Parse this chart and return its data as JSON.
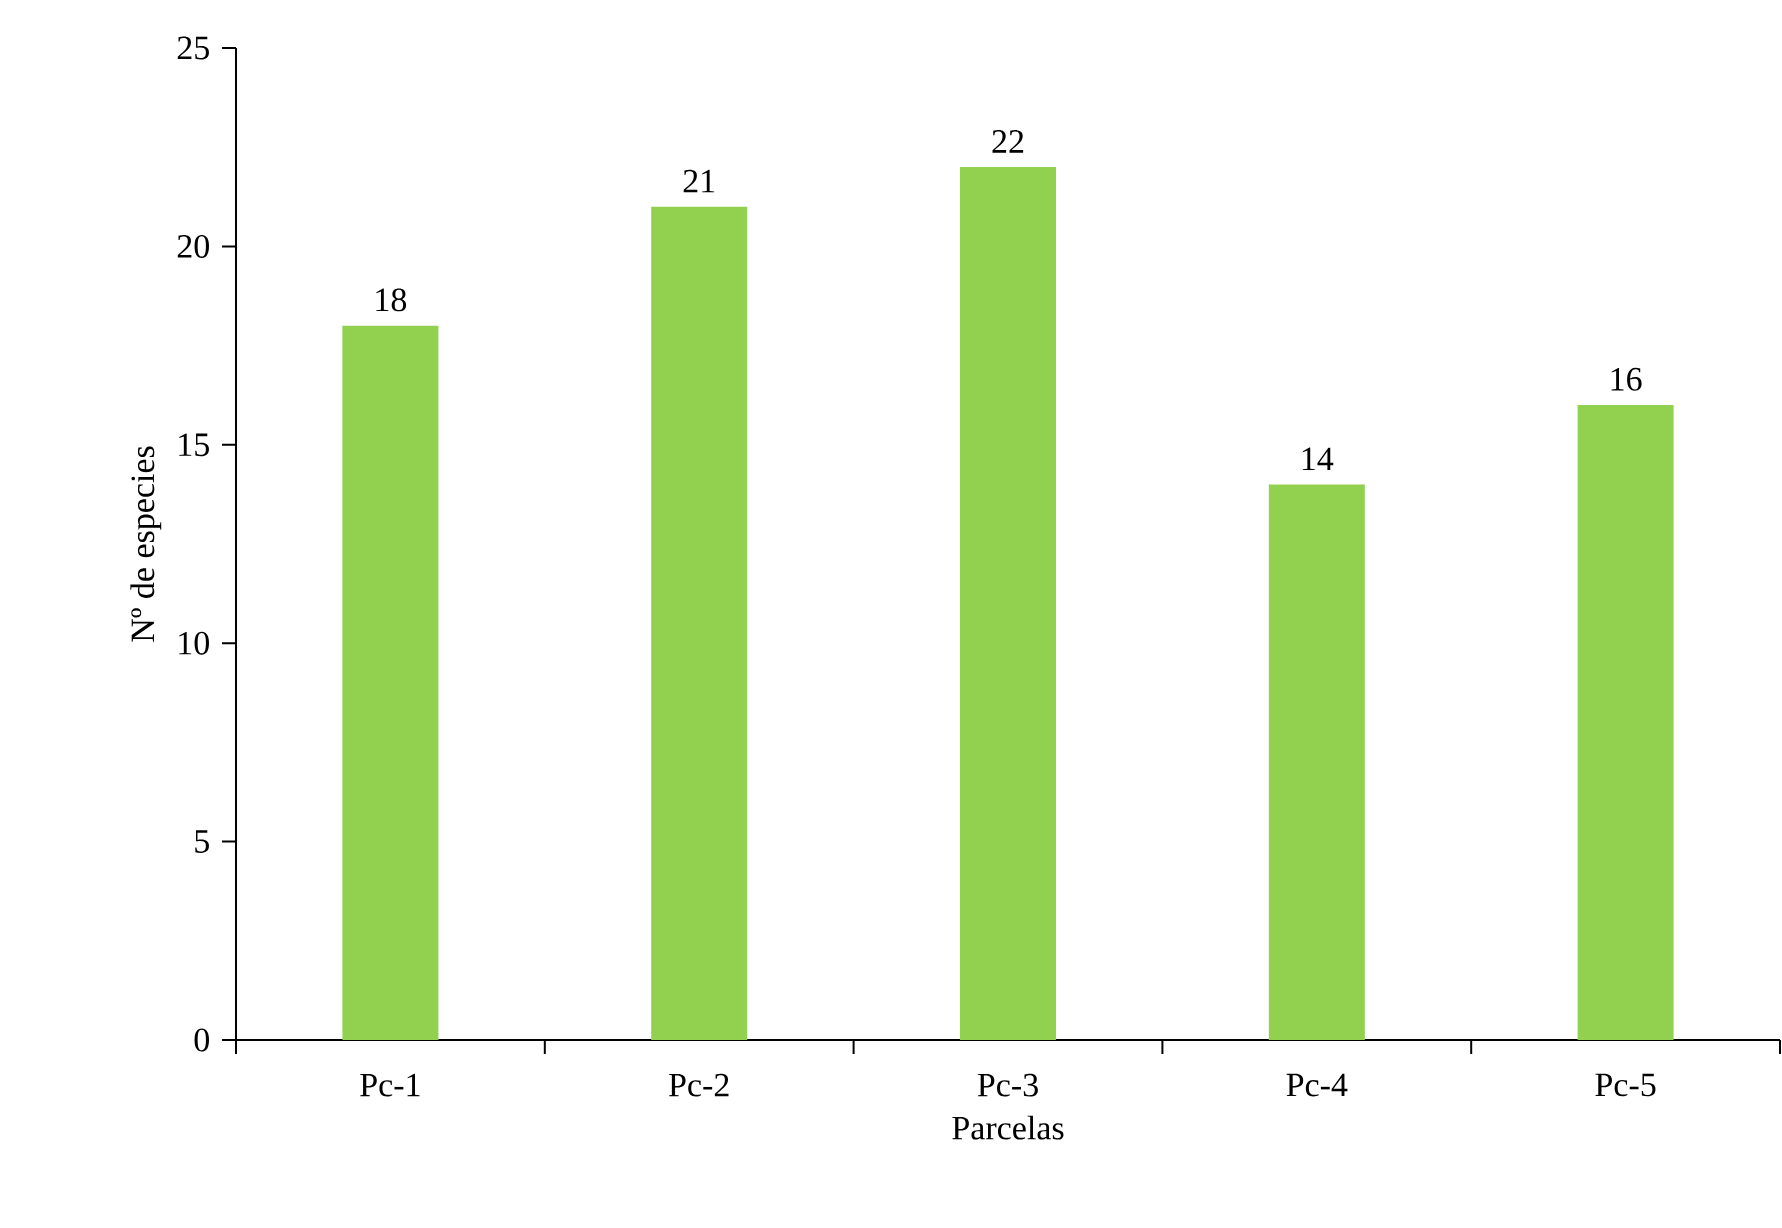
{
  "chart_data": {
    "type": "bar",
    "xlabel": "Parcelas",
    "ylabel": "Nº de especies",
    "categories": [
      "Pc-1",
      "Pc-2",
      "Pc-3",
      "Pc-4",
      "Pc-5"
    ],
    "values": [
      18,
      21,
      22,
      14,
      16
    ],
    "color": "#92d050",
    "ylim": [
      0,
      25
    ],
    "yticks": [
      0,
      5,
      10,
      15,
      20,
      25
    ],
    "data_labels": true
  }
}
